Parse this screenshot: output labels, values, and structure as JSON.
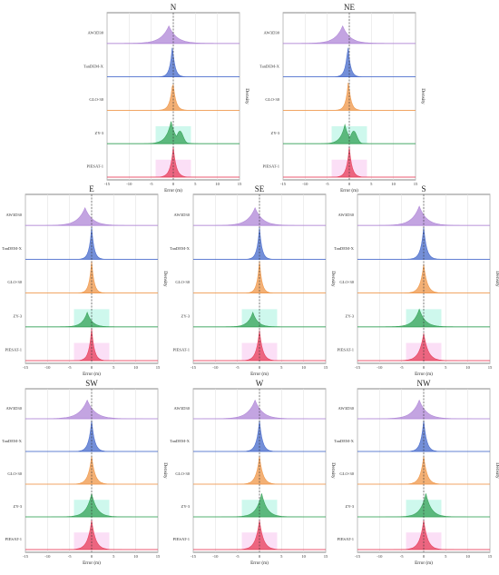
{
  "chart_data": {
    "type": "area",
    "kind": "ridgeline density plot",
    "x_ticks": [
      -15,
      -10,
      -5,
      0,
      5,
      10,
      15
    ],
    "x_range": [
      -15,
      15
    ],
    "xlabel": "Error (m)",
    "ylabel": "Density",
    "grid": true,
    "reference_line_x": 0,
    "series_colors": {
      "AW3D30": "#b28ad8",
      "TanDEM-X": "#4d6fcd",
      "GLO-30": "#ef9a4e",
      "ZY-3": "#3ba55d",
      "PIESAT-1": "#e8435f"
    },
    "shadow_colors": {
      "ZY-3": "#a6f3de",
      "PIESAT-1": "#f7c4ef"
    },
    "panels": [
      {
        "title": "N",
        "series": [
          {
            "name": "AW3D30",
            "peak_x": -1.0,
            "spread": 3.2,
            "peak_height": 0.55
          },
          {
            "name": "TanDEM-X",
            "peak_x": -0.2,
            "spread": 1.0,
            "peak_height": 1.0
          },
          {
            "name": "GLO-30",
            "peak_x": -0.1,
            "spread": 1.1,
            "peak_height": 0.95
          },
          {
            "name": "ZY-3",
            "peak_x": -0.5,
            "spread": 2.0,
            "peak_height": 0.7,
            "shoulder": {
              "x": 1.5,
              "height": 0.4
            }
          },
          {
            "name": "PIESAT-1",
            "peak_x": 0.0,
            "spread": 1.2,
            "peak_height": 0.95
          }
        ]
      },
      {
        "title": "NE",
        "series": [
          {
            "name": "AW3D30",
            "peak_x": -1.5,
            "spread": 3.0,
            "peak_height": 0.55
          },
          {
            "name": "TanDEM-X",
            "peak_x": -0.3,
            "spread": 1.0,
            "peak_height": 1.0
          },
          {
            "name": "GLO-30",
            "peak_x": -0.2,
            "spread": 1.0,
            "peak_height": 0.95
          },
          {
            "name": "ZY-3",
            "peak_x": -1.0,
            "spread": 1.8,
            "peak_height": 0.6,
            "shoulder": {
              "x": 1.0,
              "height": 0.4
            }
          },
          {
            "name": "PIESAT-1",
            "peak_x": 0.0,
            "spread": 1.1,
            "peak_height": 0.95
          }
        ]
      },
      {
        "title": "E",
        "series": [
          {
            "name": "AW3D30",
            "peak_x": -1.5,
            "spread": 3.0,
            "peak_height": 0.55
          },
          {
            "name": "TanDEM-X",
            "peak_x": 0.0,
            "spread": 1.0,
            "peak_height": 1.0
          },
          {
            "name": "GLO-30",
            "peak_x": 0.0,
            "spread": 1.0,
            "peak_height": 1.0
          },
          {
            "name": "ZY-3",
            "peak_x": -1.0,
            "spread": 2.0,
            "peak_height": 0.45
          },
          {
            "name": "PIESAT-1",
            "peak_x": 0.0,
            "spread": 1.1,
            "peak_height": 1.0
          }
        ]
      },
      {
        "title": "SE",
        "series": [
          {
            "name": "AW3D30",
            "peak_x": -1.0,
            "spread": 3.0,
            "peak_height": 0.55
          },
          {
            "name": "TanDEM-X",
            "peak_x": 0.0,
            "spread": 1.0,
            "peak_height": 1.0
          },
          {
            "name": "GLO-30",
            "peak_x": 0.0,
            "spread": 1.0,
            "peak_height": 1.0
          },
          {
            "name": "ZY-3",
            "peak_x": -1.5,
            "spread": 2.0,
            "peak_height": 0.45
          },
          {
            "name": "PIESAT-1",
            "peak_x": 0.0,
            "spread": 1.3,
            "peak_height": 0.95
          }
        ]
      },
      {
        "title": "S",
        "series": [
          {
            "name": "AW3D30",
            "peak_x": -1.0,
            "spread": 3.0,
            "peak_height": 0.6
          },
          {
            "name": "TanDEM-X",
            "peak_x": 0.0,
            "spread": 1.2,
            "peak_height": 1.0
          },
          {
            "name": "GLO-30",
            "peak_x": 0.0,
            "spread": 1.4,
            "peak_height": 0.9
          },
          {
            "name": "ZY-3",
            "peak_x": -1.0,
            "spread": 2.4,
            "peak_height": 0.55
          },
          {
            "name": "PIESAT-1",
            "peak_x": 0.0,
            "spread": 1.8,
            "peak_height": 0.85
          }
        ]
      },
      {
        "title": "SW",
        "series": [
          {
            "name": "AW3D30",
            "peak_x": -1.0,
            "spread": 3.2,
            "peak_height": 0.6
          },
          {
            "name": "TanDEM-X",
            "peak_x": 0.0,
            "spread": 1.2,
            "peak_height": 1.0
          },
          {
            "name": "GLO-30",
            "peak_x": 0.0,
            "spread": 1.4,
            "peak_height": 0.9
          },
          {
            "name": "ZY-3",
            "peak_x": 0.0,
            "spread": 2.2,
            "peak_height": 0.75
          },
          {
            "name": "PIESAT-1",
            "peak_x": 0.0,
            "spread": 1.6,
            "peak_height": 0.95
          }
        ]
      },
      {
        "title": "W",
        "series": [
          {
            "name": "AW3D30",
            "peak_x": -1.0,
            "spread": 3.0,
            "peak_height": 0.6
          },
          {
            "name": "TanDEM-X",
            "peak_x": 0.0,
            "spread": 1.2,
            "peak_height": 1.0
          },
          {
            "name": "GLO-30",
            "peak_x": 0.0,
            "spread": 1.4,
            "peak_height": 0.9
          },
          {
            "name": "ZY-3",
            "peak_x": 0.5,
            "spread": 2.2,
            "peak_height": 0.75
          },
          {
            "name": "PIESAT-1",
            "peak_x": 0.0,
            "spread": 1.6,
            "peak_height": 0.95
          }
        ]
      },
      {
        "title": "NW",
        "series": [
          {
            "name": "AW3D30",
            "peak_x": -1.0,
            "spread": 3.0,
            "peak_height": 0.6
          },
          {
            "name": "TanDEM-X",
            "peak_x": 0.0,
            "spread": 1.2,
            "peak_height": 1.0
          },
          {
            "name": "GLO-30",
            "peak_x": 0.0,
            "spread": 1.4,
            "peak_height": 0.9
          },
          {
            "name": "ZY-3",
            "peak_x": 0.5,
            "spread": 2.2,
            "peak_height": 0.75
          },
          {
            "name": "PIESAT-1",
            "peak_x": 0.0,
            "spread": 1.6,
            "peak_height": 0.95
          }
        ]
      }
    ]
  }
}
